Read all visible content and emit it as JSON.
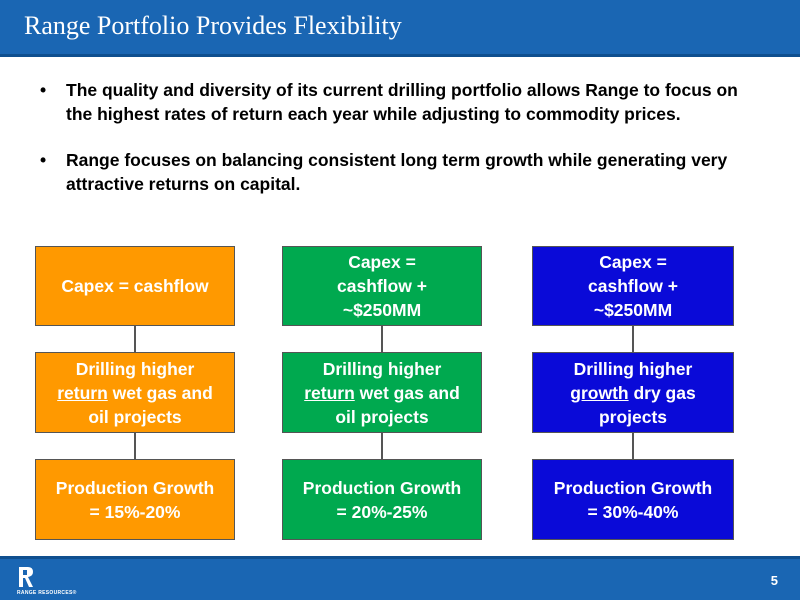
{
  "slide": {
    "title": "Range Portfolio Provides Flexibility",
    "page_number": "5"
  },
  "bullets": [
    "The quality and diversity of its current drilling portfolio allows Range to focus on the highest rates of return each year while adjusting to commodity prices.",
    "Range focuses on balancing consistent long term growth while generating very attractive returns on capital."
  ],
  "columns": [
    {
      "color": "#ff9900",
      "capex_line1": "Capex = cashflow",
      "capex_line2": "",
      "capex_line3": "",
      "drill_pre": "Drilling higher",
      "drill_underline": "return",
      "drill_rest": " wet gas and",
      "drill_line3": "oil projects",
      "growth_line1": "Production Growth",
      "growth_line2": "= 15%-20%"
    },
    {
      "color": "#00a94f",
      "capex_line1": "Capex =",
      "capex_line2": "cashflow +",
      "capex_line3": "~$250MM",
      "drill_pre": "Drilling higher",
      "drill_underline": "return",
      "drill_rest": " wet gas and",
      "drill_line3": "oil projects",
      "growth_line1": "Production Growth",
      "growth_line2": "= 20%-25%"
    },
    {
      "color": "#0a0ad8",
      "capex_line1": "Capex =",
      "capex_line2": "cashflow +",
      "capex_line3": "~$250MM",
      "drill_pre": "Drilling higher",
      "drill_underline": "growth",
      "drill_rest": " dry gas",
      "drill_line3": "projects",
      "growth_line1": "Production Growth",
      "growth_line2": "= 30%-40%"
    }
  ],
  "footer": {
    "logo_text": "RANGE RESOURCES®"
  }
}
